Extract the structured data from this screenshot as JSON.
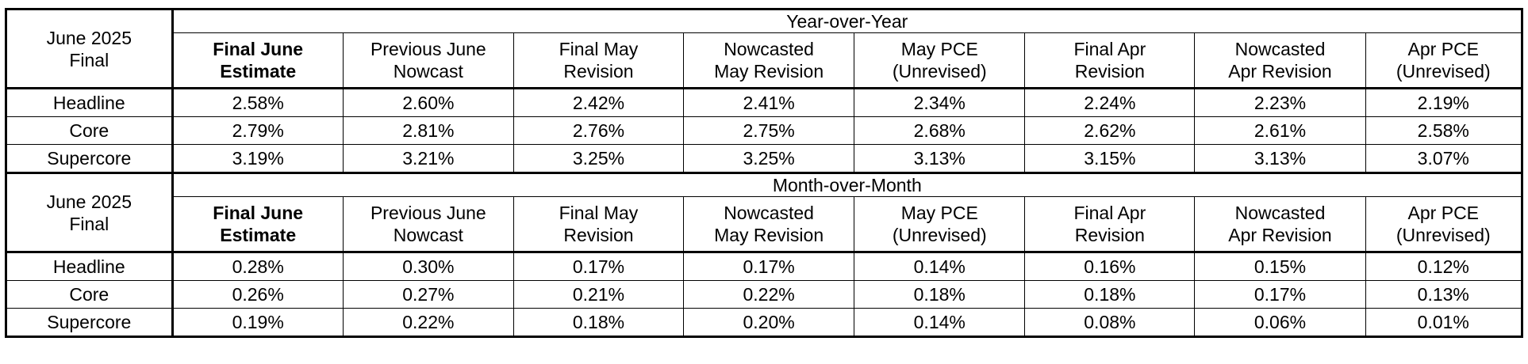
{
  "sections": [
    {
      "corner_line1": "June 2025",
      "corner_line2": "Final",
      "title": "Year-over-Year",
      "columns": [
        {
          "line1": "Final June",
          "line2": "Estimate"
        },
        {
          "line1": "Previous June",
          "line2": "Nowcast"
        },
        {
          "line1": "Final May",
          "line2": "Revision"
        },
        {
          "line1": "Nowcasted",
          "line2": "May Revision"
        },
        {
          "line1": "May PCE",
          "line2": "(Unrevised)"
        },
        {
          "line1": "Final Apr",
          "line2": "Revision"
        },
        {
          "line1": "Nowcasted",
          "line2": "Apr Revision"
        },
        {
          "line1": "Apr PCE",
          "line2": "(Unrevised)"
        }
      ],
      "rows": [
        {
          "label": "Headline",
          "values": [
            "2.58%",
            "2.60%",
            "2.42%",
            "2.41%",
            "2.34%",
            "2.24%",
            "2.23%",
            "2.19%"
          ]
        },
        {
          "label": "Core",
          "values": [
            "2.79%",
            "2.81%",
            "2.76%",
            "2.75%",
            "2.68%",
            "2.62%",
            "2.61%",
            "2.58%"
          ]
        },
        {
          "label": "Supercore",
          "values": [
            "3.19%",
            "3.21%",
            "3.25%",
            "3.25%",
            "3.13%",
            "3.15%",
            "3.13%",
            "3.07%"
          ]
        }
      ]
    },
    {
      "corner_line1": "June 2025",
      "corner_line2": "Final",
      "title": "Month-over-Month",
      "columns": [
        {
          "line1": "Final June",
          "line2": "Estimate"
        },
        {
          "line1": "Previous June",
          "line2": "Nowcast"
        },
        {
          "line1": "Final May",
          "line2": "Revision"
        },
        {
          "line1": "Nowcasted",
          "line2": "May Revision"
        },
        {
          "line1": "May PCE",
          "line2": "(Unrevised)"
        },
        {
          "line1": "Final Apr",
          "line2": "Revision"
        },
        {
          "line1": "Nowcasted",
          "line2": "Apr Revision"
        },
        {
          "line1": "Apr PCE",
          "line2": "(Unrevised)"
        }
      ],
      "rows": [
        {
          "label": "Headline",
          "values": [
            "0.28%",
            "0.30%",
            "0.17%",
            "0.17%",
            "0.14%",
            "0.16%",
            "0.15%",
            "0.12%"
          ]
        },
        {
          "label": "Core",
          "values": [
            "0.26%",
            "0.27%",
            "0.21%",
            "0.22%",
            "0.18%",
            "0.18%",
            "0.17%",
            "0.13%"
          ]
        },
        {
          "label": "Supercore",
          "values": [
            "0.19%",
            "0.22%",
            "0.18%",
            "0.20%",
            "0.14%",
            "0.08%",
            "0.06%",
            "0.01%"
          ]
        }
      ]
    }
  ]
}
